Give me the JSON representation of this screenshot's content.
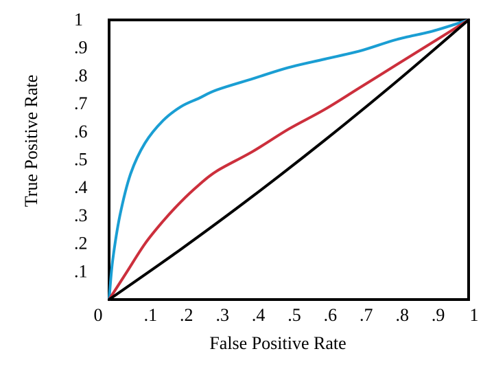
{
  "chart_data": {
    "type": "line",
    "title": "",
    "xlabel": "False Positive Rate",
    "ylabel": "True Positive Rate",
    "xlim": [
      0,
      1
    ],
    "ylim": [
      0,
      1
    ],
    "grid": false,
    "x_ticks": [
      {
        "value": 0,
        "label": "0"
      },
      {
        "value": 0.1,
        "label": ".1"
      },
      {
        "value": 0.2,
        "label": ".2"
      },
      {
        "value": 0.3,
        "label": ".3"
      },
      {
        "value": 0.4,
        "label": ".4"
      },
      {
        "value": 0.5,
        "label": ".5"
      },
      {
        "value": 0.6,
        "label": ".6"
      },
      {
        "value": 0.7,
        "label": ".7"
      },
      {
        "value": 0.8,
        "label": ".8"
      },
      {
        "value": 0.9,
        "label": ".9"
      },
      {
        "value": 1,
        "label": "1"
      }
    ],
    "y_ticks": [
      {
        "value": 0.1,
        "label": ".1"
      },
      {
        "value": 0.2,
        "label": ".2"
      },
      {
        "value": 0.3,
        "label": ".3"
      },
      {
        "value": 0.4,
        "label": ".4"
      },
      {
        "value": 0.5,
        "label": ".5"
      },
      {
        "value": 0.6,
        "label": ".6"
      },
      {
        "value": 0.7,
        "label": ".7"
      },
      {
        "value": 0.8,
        "label": ".8"
      },
      {
        "value": 0.9,
        "label": ".9"
      },
      {
        "value": 1,
        "label": "1"
      }
    ],
    "series": [
      {
        "color": "#1a9ed3",
        "x": [
          0,
          0.01,
          0.03,
          0.06,
          0.1,
          0.15,
          0.2,
          0.25,
          0.3,
          0.4,
          0.5,
          0.6,
          0.7,
          0.8,
          0.9,
          1
        ],
        "y": [
          0,
          0.14,
          0.3,
          0.45,
          0.56,
          0.64,
          0.69,
          0.72,
          0.75,
          0.79,
          0.83,
          0.86,
          0.89,
          0.93,
          0.96,
          1
        ]
      },
      {
        "color": "#cc2f3c",
        "x": [
          0,
          0.05,
          0.1,
          0.15,
          0.2,
          0.25,
          0.3,
          0.4,
          0.5,
          0.6,
          0.7,
          0.8,
          0.9,
          1
        ],
        "y": [
          0,
          0.1,
          0.2,
          0.28,
          0.35,
          0.41,
          0.46,
          0.53,
          0.61,
          0.68,
          0.76,
          0.84,
          0.92,
          1
        ]
      },
      {
        "color": "#000000",
        "x": [
          0,
          0.2,
          0.4,
          0.6,
          0.8,
          1
        ],
        "y": [
          0,
          0.18,
          0.37,
          0.57,
          0.78,
          1
        ]
      }
    ]
  }
}
